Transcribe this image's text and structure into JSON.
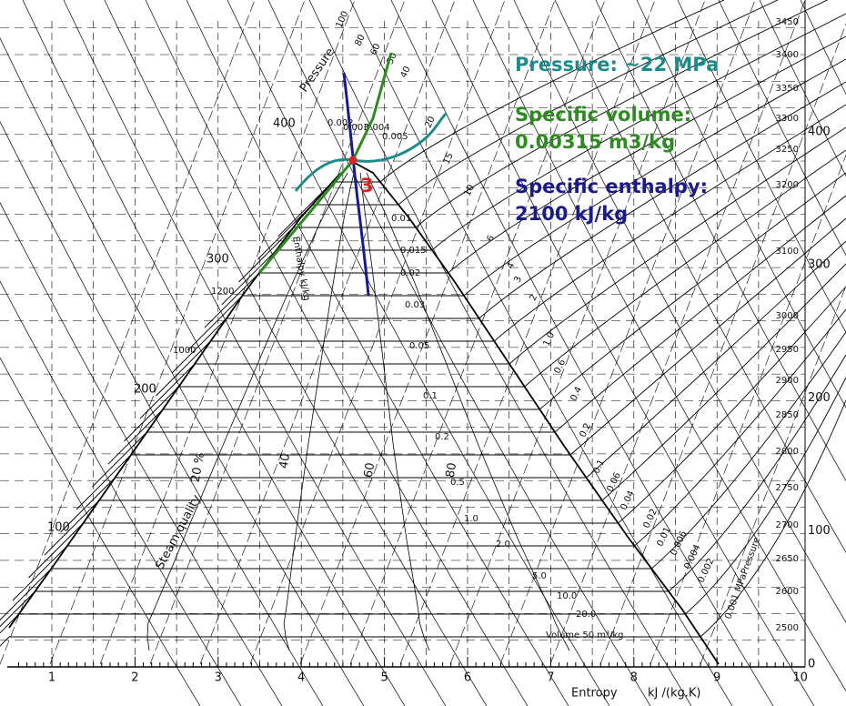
{
  "annotations": {
    "pressure": "Pressure: ~22 MPa",
    "specific_volume": [
      "Specific volume:",
      "0.00315 m3/kg"
    ],
    "specific_enthalpy": [
      "Specific enthalpy:",
      "2100 kJ/kg"
    ],
    "point": "3"
  },
  "axes": {
    "x_label": "Entropy",
    "x_unit": "kJ /(kg.K)",
    "x_ticks": [
      "1",
      "2",
      "3",
      "4",
      "5",
      "6",
      "7",
      "8",
      "9",
      "10"
    ],
    "left_ticks": [
      "100",
      "200",
      "300",
      "400"
    ],
    "right_ticks": [
      "0",
      "100",
      "200",
      "300",
      "400"
    ]
  },
  "enthalpy_labels": [
    "3450",
    "3400",
    "3350",
    "3300",
    "3250",
    "3200",
    "3100",
    "3000",
    "2950",
    "2900",
    "2850",
    "2800",
    "2750",
    "2700",
    "2650",
    "2600",
    "2500"
  ],
  "enthalpy_curve_labels": [
    "1200",
    "1000"
  ],
  "enthalpy_title": "Enthalpy kJ/kg",
  "quality_labels": {
    "title": "Steam quality",
    "values": [
      "20 %",
      "40",
      "60",
      "80"
    ]
  },
  "pressure_labels": {
    "title": "Pressure",
    "values": [
      "100",
      "80",
      "60",
      "50",
      "40",
      "20",
      "15",
      "10",
      "6",
      "4",
      "3",
      "2",
      "1.0",
      "0.6",
      "0.4",
      "0.2",
      "0.1",
      "0.06",
      "0.04",
      "0.02",
      "0.01",
      "0.006",
      "0.004",
      "0.002"
    ],
    "last": "0.001 MPaPressure"
  },
  "volume_labels": [
    "0.002",
    "0.003",
    "0.004",
    "0.005",
    "0.01",
    "0.015",
    "0.02",
    "0.03",
    "0.05",
    "0.1",
    "0.2",
    "0.5",
    "1.0",
    "2.0",
    "5.0",
    "10.0",
    "20.0",
    "Volume 50 m³/kg"
  ]
}
